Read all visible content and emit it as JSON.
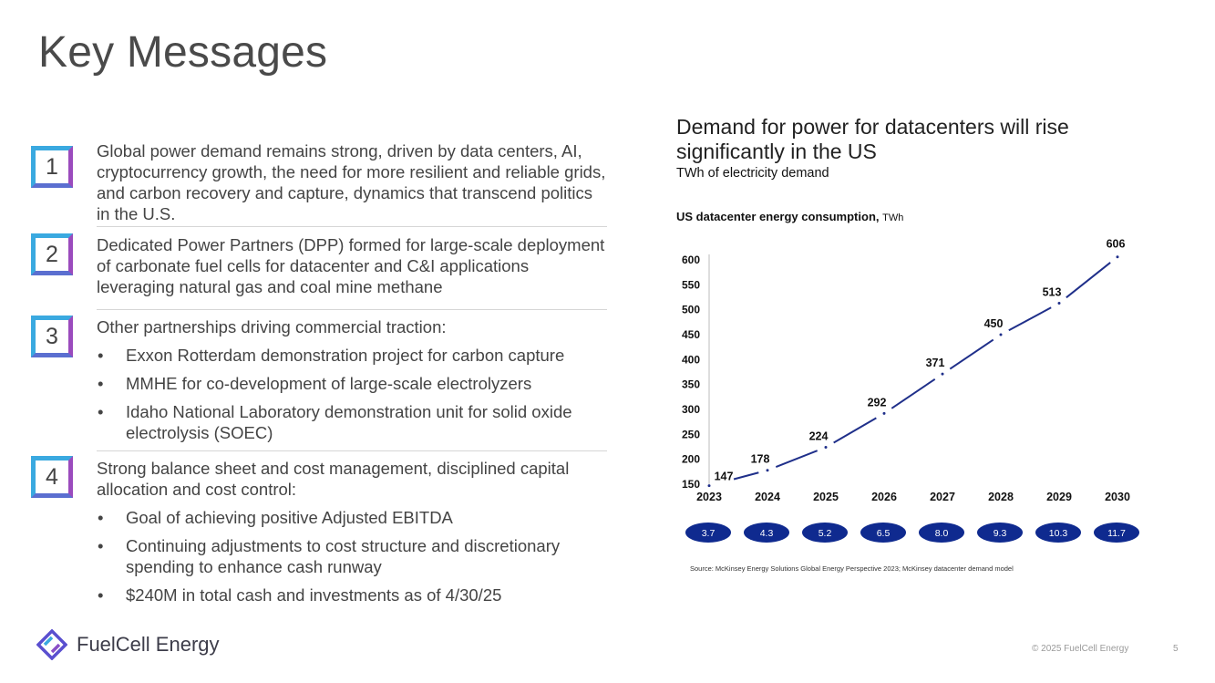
{
  "page": {
    "title": "Key Messages",
    "copyright": "© 2025 FuelCell Energy",
    "page_number": "5",
    "logo_text": "FuelCell Energy"
  },
  "messages": [
    {
      "num": "1",
      "text": "Global power demand remains strong, driven by data centers, AI, cryptocurrency growth, the need for more resilient and reliable grids, and carbon recovery and capture, dynamics that transcend politics in the U.S.",
      "bullets": []
    },
    {
      "num": "2",
      "text": "Dedicated Power Partners (DPP) formed for large-scale deployment of carbonate fuel cells for datacenter and C&I applications leveraging natural gas and coal mine methane",
      "bullets": []
    },
    {
      "num": "3",
      "text": "Other partnerships driving commercial traction:",
      "bullets": [
        "Exxon Rotterdam demonstration project for carbon capture",
        "MMHE for co-development of large-scale electrolyzers",
        "Idaho National Laboratory demonstration unit for solid oxide electrolysis (SOEC)"
      ]
    },
    {
      "num": "4",
      "text": "Strong balance sheet and cost management, disciplined capital allocation and cost control:",
      "bullets": [
        "Goal of achieving positive Adjusted EBITDA",
        "Continuing adjustments to cost structure and discretionary spending to enhance cash runway",
        "$240M in total cash and investments as of 4/30/25"
      ]
    }
  ],
  "chart_header": {
    "title": "Demand for power for datacenters will rise significantly in the US",
    "subtitle": "TWh of electricity demand",
    "label": "US datacenter energy consumption,",
    "label_unit": "TWh",
    "source": "Source: McKinsey Energy Solutions Global Energy Perspective 2023; McKinsey datacenter demand model"
  },
  "chart_data": {
    "type": "line",
    "title": "US datacenter energy consumption, TWh",
    "x": [
      "2023",
      "2024",
      "2025",
      "2026",
      "2027",
      "2028",
      "2029",
      "2030"
    ],
    "values": [
      147,
      178,
      224,
      292,
      371,
      450,
      513,
      606
    ],
    "growth_labels": [
      "3.7",
      "4.3",
      "5.2",
      "6.5",
      "8.0",
      "9.3",
      "10.3",
      "11.7"
    ],
    "yticks": [
      150,
      200,
      250,
      300,
      350,
      400,
      450,
      500,
      550,
      600
    ],
    "ylim": [
      150,
      600
    ],
    "grid": false,
    "line_color": "#1f2f8a",
    "oval_color": "#0f2a8f"
  }
}
